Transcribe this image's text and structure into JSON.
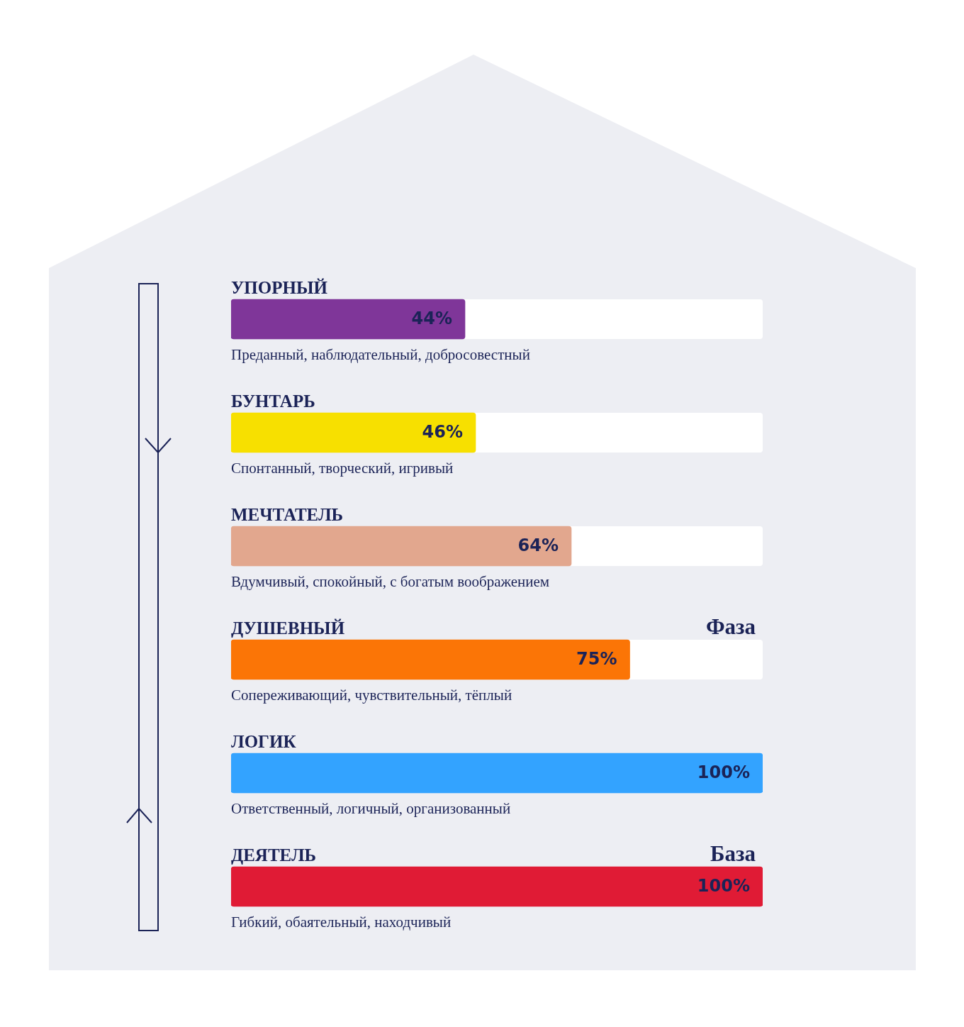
{
  "chart_data": {
    "type": "bar",
    "orientation": "horizontal",
    "categories": [
      "УПОРНЫЙ",
      "БУНТАРЬ",
      "МЕЧТАТЕЛЬ",
      "ДУШЕВНЫЙ",
      "ЛОГИК",
      "ДЕЯТЕЛЬ"
    ],
    "values": [
      44,
      46,
      64,
      75,
      100,
      100
    ],
    "colors": [
      "#7f3699",
      "#f7e000",
      "#e2a78e",
      "#fb7506",
      "#33a3ff",
      "#e01b35"
    ],
    "value_labels": [
      "44%",
      "46%",
      "64%",
      "75%",
      "100%",
      "100%"
    ],
    "xlim": [
      0,
      100
    ],
    "tick_labels": false,
    "legend": false,
    "annotations": [
      "Преданный, наблюдательный, добросовестный",
      "Спонтанный, творческий, игривый",
      "Вдумчивый, спокойный, с богатым воображением",
      "Сопереживающий, чувствительный, тёплый",
      "Ответственный, логичный, организованный",
      "Гибкий, обаятельный, находчивый",
      "Фаза",
      "База"
    ]
  }
}
